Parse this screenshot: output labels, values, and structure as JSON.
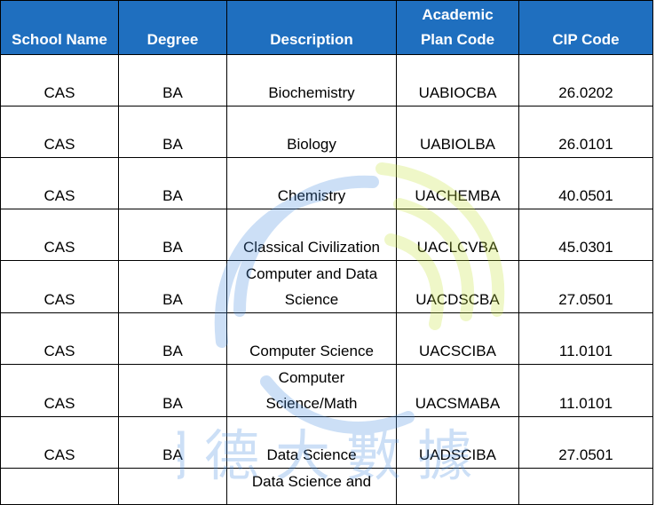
{
  "columns": [
    "School Name",
    "Degree",
    "Description",
    "Academic Plan Code",
    "CIP Code"
  ],
  "rows": [
    {
      "school": "CAS",
      "degree": "BA",
      "description": "Biochemistry",
      "plan_code": "UABIOCBA",
      "cip": "26.0202"
    },
    {
      "school": "CAS",
      "degree": "BA",
      "description": "Biology",
      "plan_code": "UABIOLBA",
      "cip": "26.0101"
    },
    {
      "school": "CAS",
      "degree": "BA",
      "description": "Chemistry",
      "plan_code": "UACHEMBA",
      "cip": "40.0501"
    },
    {
      "school": "CAS",
      "degree": "BA",
      "description": "Classical Civilization",
      "plan_code": "UACLCVBA",
      "cip": "45.0301"
    },
    {
      "school": "CAS",
      "degree": "BA",
      "description": "Computer and Data Science",
      "plan_code": "UACDSCBA",
      "cip": "27.0501"
    },
    {
      "school": "CAS",
      "degree": "BA",
      "description": "Computer Science",
      "plan_code": "UACSCIBA",
      "cip": "11.0101"
    },
    {
      "school": "CAS",
      "degree": "BA",
      "description": "Computer Science/Math",
      "plan_code": "UACSMABA",
      "cip": "11.0101"
    },
    {
      "school": "CAS",
      "degree": "BA",
      "description": "Data Science",
      "plan_code": "UADSCIBA",
      "cip": "27.0501"
    },
    {
      "school": "",
      "degree": "",
      "description": "Data Science and",
      "plan_code": "",
      "cip": ""
    }
  ],
  "watermark": {
    "text": "明德大數據",
    "colors": [
      "#4a90e2",
      "#c8e63c"
    ]
  }
}
